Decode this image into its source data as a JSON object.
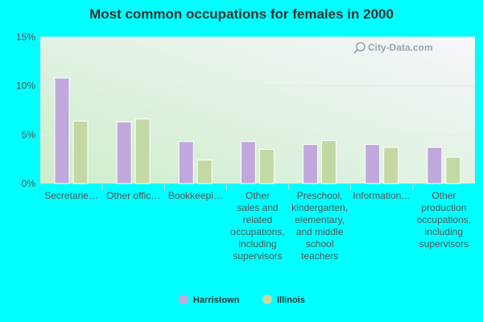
{
  "colors": {
    "background": "#00ffff",
    "harristown": "#c0a8dc",
    "illinois": "#c4d8a4",
    "grid": "#e6eedf",
    "axis_text": "#555555",
    "watermark": "#9aa6b0"
  },
  "watermark": {
    "text": "City-Data.com",
    "icon": "search-icon"
  },
  "chart_data": {
    "type": "bar",
    "title": "Most common occupations for females in 2000",
    "xlabel": "",
    "ylabel": "",
    "ylim": [
      0,
      15
    ],
    "yticks": [
      "0%",
      "5%",
      "10%",
      "15%"
    ],
    "ytick_values": [
      0,
      5,
      10,
      15
    ],
    "grid": true,
    "legend_position": "bottom",
    "categories": [
      [
        "Secretarie…"
      ],
      [
        "Other offic…"
      ],
      [
        "Bookkeepi…"
      ],
      [
        "Other",
        "sales and",
        "related",
        "occupations,",
        "including",
        "supervisors"
      ],
      [
        "Preschool,",
        "kindergarten,",
        "elementary,",
        "and middle",
        "school",
        "teachers"
      ],
      [
        "Information…"
      ],
      [
        "Other",
        "production",
        "occupations,",
        "including",
        "supervisors"
      ]
    ],
    "series": [
      {
        "name": "Harristown",
        "values": [
          10.8,
          6.3,
          4.3,
          4.3,
          4.0,
          4.0,
          3.7
        ]
      },
      {
        "name": "Illinois",
        "values": [
          6.4,
          6.6,
          2.4,
          3.5,
          4.4,
          3.7,
          2.7
        ]
      }
    ]
  }
}
